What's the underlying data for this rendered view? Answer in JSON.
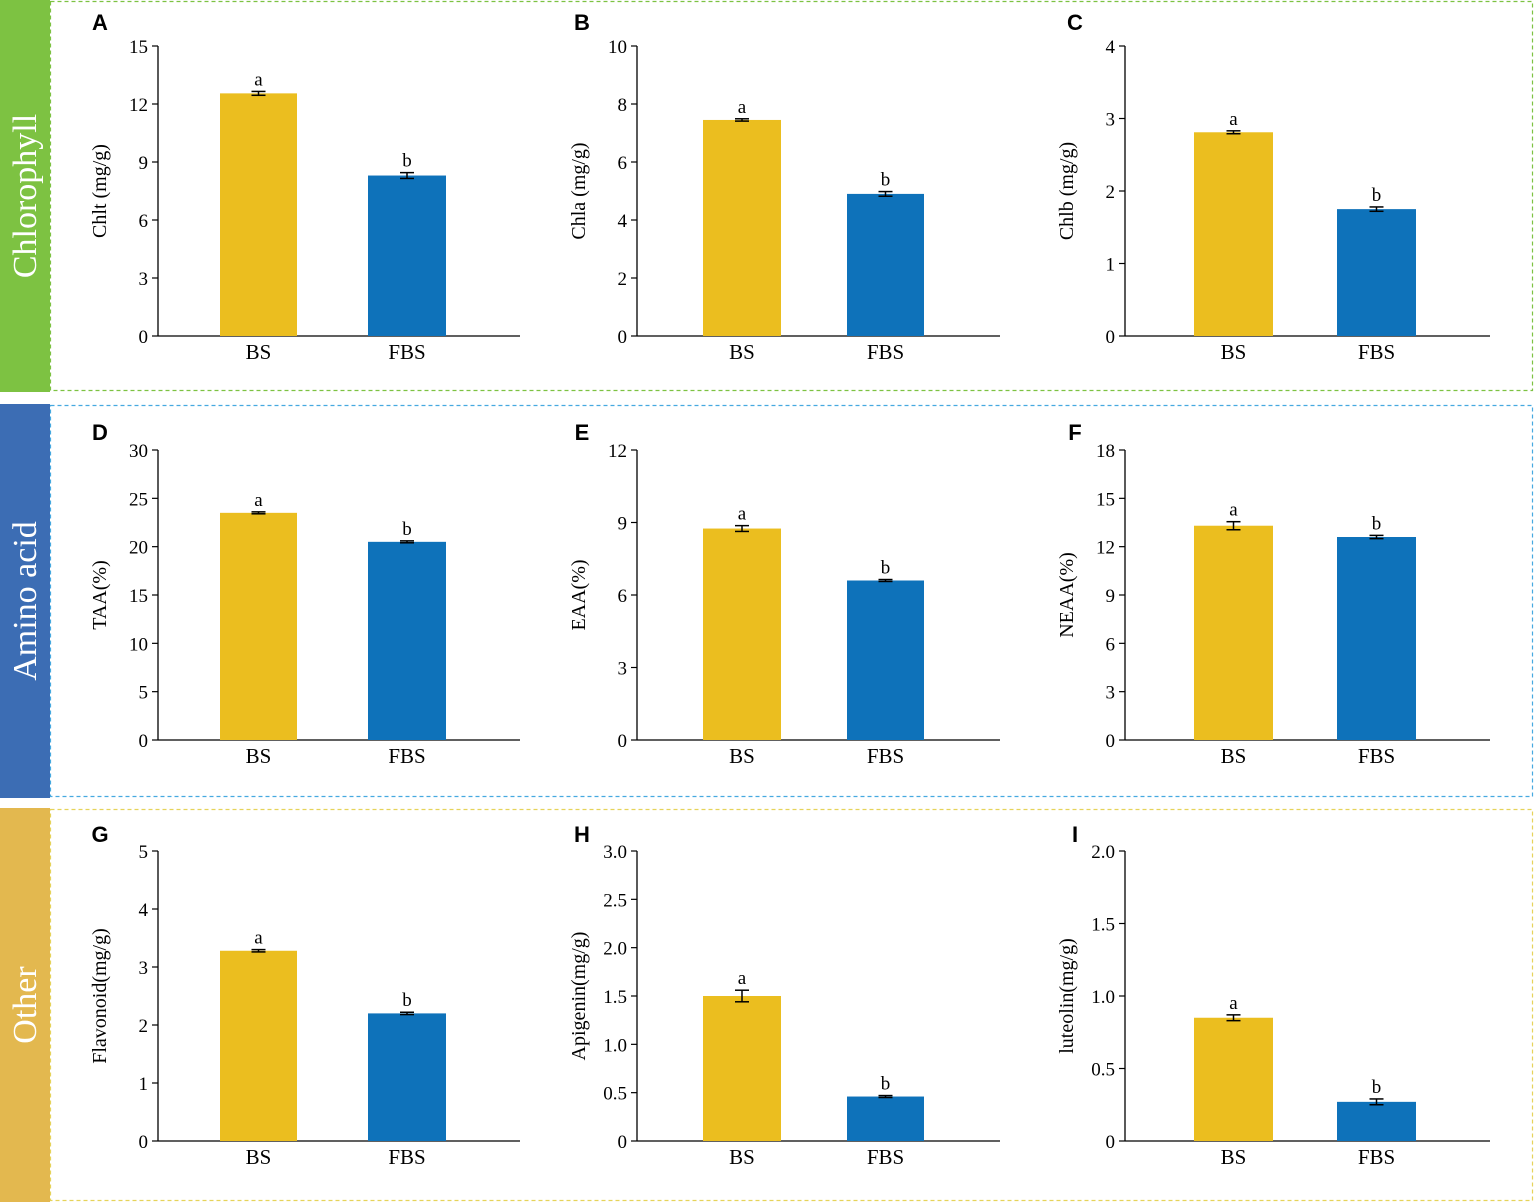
{
  "colors": {
    "bs_bar": "#EBBE1F",
    "fbs_bar": "#0E72BA",
    "axis": "#000000"
  },
  "groups": [
    {
      "label": "Chlorophyll",
      "color": "#7DC242",
      "border": "#7DC242"
    },
    {
      "label": "Amino acid",
      "color": "#3C6DB4",
      "border": "#46A9E0"
    },
    {
      "label": "Other",
      "color": "#E3B84F",
      "border": "#E6D35A"
    }
  ],
  "chart_data": [
    {
      "type": "bar",
      "panel": "A",
      "title": "",
      "ylabel": "Chlt (mg/g)",
      "xlabel": "",
      "categories": [
        "BS",
        "FBS"
      ],
      "values": [
        12.55,
        8.3
      ],
      "errors": [
        0.1,
        0.15
      ],
      "significance": [
        "a",
        "b"
      ],
      "ylim": [
        0,
        15
      ],
      "ticks": [
        "0",
        "3",
        "6",
        "9",
        "12",
        "15"
      ]
    },
    {
      "type": "bar",
      "panel": "B",
      "title": "",
      "ylabel": "Chla (mg/g)",
      "xlabel": "",
      "categories": [
        "BS",
        "FBS"
      ],
      "values": [
        7.45,
        4.9
      ],
      "errors": [
        0.04,
        0.08
      ],
      "significance": [
        "a",
        "b"
      ],
      "ylim": [
        0,
        10
      ],
      "ticks": [
        "0",
        "2",
        "4",
        "6",
        "8",
        "10"
      ]
    },
    {
      "type": "bar",
      "panel": "C",
      "title": "",
      "ylabel": "Chlb (mg/g)",
      "xlabel": "",
      "categories": [
        "BS",
        "FBS"
      ],
      "values": [
        2.81,
        1.75
      ],
      "errors": [
        0.02,
        0.03
      ],
      "significance": [
        "a",
        "b"
      ],
      "ylim": [
        0,
        4
      ],
      "ticks": [
        "0",
        "1",
        "2",
        "3",
        "4"
      ]
    },
    {
      "type": "bar",
      "panel": "D",
      "title": "",
      "ylabel": "TAA(%)",
      "xlabel": "",
      "categories": [
        "BS",
        "FBS"
      ],
      "values": [
        23.5,
        20.5
      ],
      "errors": [
        0.1,
        0.1
      ],
      "significance": [
        "a",
        "b"
      ],
      "ylim": [
        0,
        30
      ],
      "ticks": [
        "0",
        "5",
        "10",
        "15",
        "20",
        "25",
        "30"
      ]
    },
    {
      "type": "bar",
      "panel": "E",
      "title": "",
      "ylabel": "EAA(%)",
      "xlabel": "",
      "categories": [
        "BS",
        "FBS"
      ],
      "values": [
        8.75,
        6.6
      ],
      "errors": [
        0.12,
        0.04
      ],
      "significance": [
        "a",
        "b"
      ],
      "ylim": [
        0,
        12
      ],
      "ticks": [
        "0",
        "3",
        "6",
        "9",
        "12"
      ]
    },
    {
      "type": "bar",
      "panel": "F",
      "title": "",
      "ylabel": "NEAA(%)",
      "xlabel": "",
      "categories": [
        "BS",
        "FBS"
      ],
      "values": [
        13.3,
        12.6
      ],
      "errors": [
        0.25,
        0.1
      ],
      "significance": [
        "a",
        "b"
      ],
      "ylim": [
        0,
        18
      ],
      "ticks": [
        "0",
        "3",
        "6",
        "9",
        "12",
        "15",
        "18"
      ]
    },
    {
      "type": "bar",
      "panel": "G",
      "title": "",
      "ylabel": "Flavonoid(mg/g)",
      "xlabel": "",
      "categories": [
        "BS",
        "FBS"
      ],
      "values": [
        3.28,
        2.2
      ],
      "errors": [
        0.02,
        0.02
      ],
      "significance": [
        "a",
        "b"
      ],
      "ylim": [
        0,
        5
      ],
      "ticks": [
        "0",
        "1",
        "2",
        "3",
        "4",
        "5"
      ]
    },
    {
      "type": "bar",
      "panel": "H",
      "title": "",
      "ylabel": "Apigenin(mg/g)",
      "xlabel": "",
      "categories": [
        "BS",
        "FBS"
      ],
      "values": [
        1.5,
        0.46
      ],
      "errors": [
        0.06,
        0.01
      ],
      "significance": [
        "a",
        "b"
      ],
      "ylim": [
        0,
        3
      ],
      "ticks": [
        "0",
        "0.5",
        "1.0",
        "1.5",
        "2.0",
        "2.5",
        "3.0"
      ]
    },
    {
      "type": "bar",
      "panel": "I",
      "title": "",
      "ylabel": "luteolin(mg/g)",
      "xlabel": "",
      "categories": [
        "BS",
        "FBS"
      ],
      "values": [
        0.85,
        0.27
      ],
      "errors": [
        0.02,
        0.02
      ],
      "significance": [
        "a",
        "b"
      ],
      "ylim": [
        0,
        2
      ],
      "ticks": [
        "0",
        "0.5",
        "1.0",
        "1.5",
        "2.0"
      ]
    }
  ]
}
